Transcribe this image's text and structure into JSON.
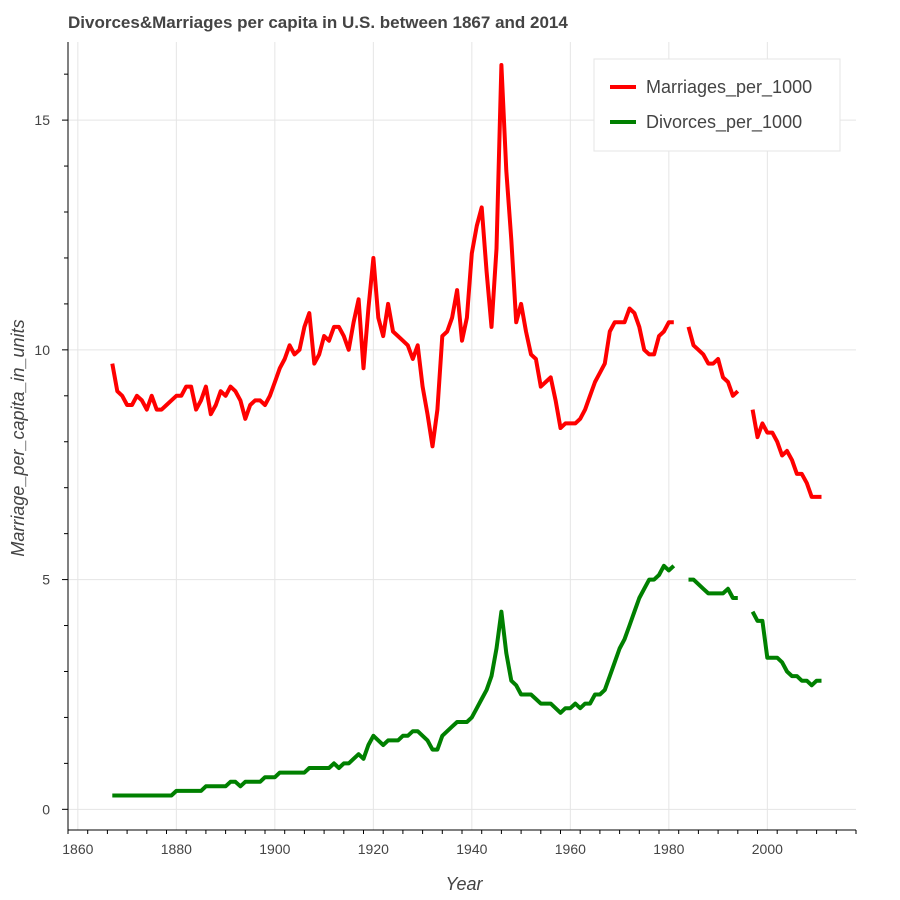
{
  "chart_data": {
    "type": "line",
    "title": "Divorces&Marriages per capita in U.S. between 1867 and 2014",
    "xlabel": "Year",
    "ylabel": "Marriage_per_capita_in_units",
    "xlim": [
      1858,
      2018
    ],
    "ylim": [
      -0.45,
      16.7
    ],
    "x_ticks": [
      1860,
      1880,
      1900,
      1920,
      1940,
      1960,
      1980,
      2000
    ],
    "y_ticks": [
      0,
      5,
      10,
      15
    ],
    "grid": true,
    "legend_position": "top-right",
    "series": [
      {
        "name": "Marriages_per_1000",
        "color": "#ff0000",
        "points": [
          [
            1867,
            9.7
          ],
          [
            1868,
            9.1
          ],
          [
            1869,
            9.0
          ],
          [
            1870,
            8.8
          ],
          [
            1871,
            8.8
          ],
          [
            1872,
            9.0
          ],
          [
            1873,
            8.9
          ],
          [
            1874,
            8.7
          ],
          [
            1875,
            9.0
          ],
          [
            1876,
            8.7
          ],
          [
            1877,
            8.7
          ],
          [
            1878,
            8.8
          ],
          [
            1879,
            8.9
          ],
          [
            1880,
            9.0
          ],
          [
            1881,
            9.0
          ],
          [
            1882,
            9.2
          ],
          [
            1883,
            9.2
          ],
          [
            1884,
            8.7
          ],
          [
            1885,
            8.9
          ],
          [
            1886,
            9.2
          ],
          [
            1887,
            8.6
          ],
          [
            1888,
            8.8
          ],
          [
            1889,
            9.1
          ],
          [
            1890,
            9.0
          ],
          [
            1891,
            9.2
          ],
          [
            1892,
            9.1
          ],
          [
            1893,
            8.9
          ],
          [
            1894,
            8.5
          ],
          [
            1895,
            8.8
          ],
          [
            1896,
            8.9
          ],
          [
            1897,
            8.9
          ],
          [
            1898,
            8.8
          ],
          [
            1899,
            9.0
          ],
          [
            1900,
            9.3
          ],
          [
            1901,
            9.6
          ],
          [
            1902,
            9.8
          ],
          [
            1903,
            10.1
          ],
          [
            1904,
            9.9
          ],
          [
            1905,
            10.0
          ],
          [
            1906,
            10.5
          ],
          [
            1907,
            10.8
          ],
          [
            1908,
            9.7
          ],
          [
            1909,
            9.9
          ],
          [
            1910,
            10.3
          ],
          [
            1911,
            10.2
          ],
          [
            1912,
            10.5
          ],
          [
            1913,
            10.5
          ],
          [
            1914,
            10.3
          ],
          [
            1915,
            10.0
          ],
          [
            1916,
            10.6
          ],
          [
            1917,
            11.1
          ],
          [
            1918,
            9.6
          ],
          [
            1919,
            10.9
          ],
          [
            1920,
            12.0
          ],
          [
            1921,
            10.7
          ],
          [
            1922,
            10.3
          ],
          [
            1923,
            11.0
          ],
          [
            1924,
            10.4
          ],
          [
            1925,
            10.3
          ],
          [
            1926,
            10.2
          ],
          [
            1927,
            10.1
          ],
          [
            1928,
            9.8
          ],
          [
            1929,
            10.1
          ],
          [
            1930,
            9.2
          ],
          [
            1931,
            8.6
          ],
          [
            1932,
            7.9
          ],
          [
            1933,
            8.7
          ],
          [
            1934,
            10.3
          ],
          [
            1935,
            10.4
          ],
          [
            1936,
            10.7
          ],
          [
            1937,
            11.3
          ],
          [
            1938,
            10.2
          ],
          [
            1939,
            10.7
          ],
          [
            1940,
            12.1
          ],
          [
            1941,
            12.7
          ],
          [
            1942,
            13.1
          ],
          [
            1943,
            11.7
          ],
          [
            1944,
            10.5
          ],
          [
            1945,
            12.2
          ],
          [
            1946,
            16.2
          ],
          [
            1947,
            13.9
          ],
          [
            1948,
            12.4
          ],
          [
            1949,
            10.6
          ],
          [
            1950,
            11.0
          ],
          [
            1951,
            10.4
          ],
          [
            1952,
            9.9
          ],
          [
            1953,
            9.8
          ],
          [
            1954,
            9.2
          ],
          [
            1955,
            9.3
          ],
          [
            1956,
            9.4
          ],
          [
            1957,
            8.9
          ],
          [
            1958,
            8.3
          ],
          [
            1959,
            8.4
          ],
          [
            1960,
            8.4
          ],
          [
            1961,
            8.4
          ],
          [
            1962,
            8.5
          ],
          [
            1963,
            8.7
          ],
          [
            1964,
            9.0
          ],
          [
            1965,
            9.3
          ],
          [
            1966,
            9.5
          ],
          [
            1967,
            9.7
          ],
          [
            1968,
            10.4
          ],
          [
            1969,
            10.6
          ],
          [
            1970,
            10.6
          ],
          [
            1971,
            10.6
          ],
          [
            1972,
            10.9
          ],
          [
            1973,
            10.8
          ],
          [
            1974,
            10.5
          ],
          [
            1975,
            10.0
          ],
          [
            1976,
            9.9
          ],
          [
            1977,
            9.9
          ],
          [
            1978,
            10.3
          ],
          [
            1979,
            10.4
          ],
          [
            1980,
            10.6
          ],
          [
            1981,
            10.6
          ],
          null,
          [
            1984,
            10.5
          ],
          [
            1985,
            10.1
          ],
          [
            1986,
            10.0
          ],
          [
            1987,
            9.9
          ],
          [
            1988,
            9.7
          ],
          [
            1989,
            9.7
          ],
          [
            1990,
            9.8
          ],
          [
            1991,
            9.4
          ],
          [
            1992,
            9.3
          ],
          [
            1993,
            9.0
          ],
          [
            1994,
            9.1
          ],
          null,
          [
            1997,
            8.7
          ],
          [
            1998,
            8.1
          ],
          [
            1999,
            8.4
          ],
          [
            2000,
            8.2
          ],
          [
            2001,
            8.2
          ],
          [
            2002,
            8.0
          ],
          [
            2003,
            7.7
          ],
          [
            2004,
            7.8
          ],
          [
            2005,
            7.6
          ],
          [
            2006,
            7.3
          ],
          [
            2007,
            7.3
          ],
          [
            2008,
            7.1
          ],
          [
            2009,
            6.8
          ],
          [
            2010,
            6.8
          ],
          [
            2011,
            6.8
          ]
        ]
      },
      {
        "name": "Divorces_per_1000",
        "color": "#008000",
        "points": [
          [
            1867,
            0.3
          ],
          [
            1870,
            0.3
          ],
          [
            1875,
            0.3
          ],
          [
            1879,
            0.3
          ],
          [
            1880,
            0.4
          ],
          [
            1885,
            0.4
          ],
          [
            1886,
            0.5
          ],
          [
            1890,
            0.5
          ],
          [
            1891,
            0.6
          ],
          [
            1892,
            0.6
          ],
          [
            1893,
            0.5
          ],
          [
            1894,
            0.6
          ],
          [
            1897,
            0.6
          ],
          [
            1898,
            0.7
          ],
          [
            1900,
            0.7
          ],
          [
            1901,
            0.8
          ],
          [
            1906,
            0.8
          ],
          [
            1907,
            0.9
          ],
          [
            1911,
            0.9
          ],
          [
            1912,
            1.0
          ],
          [
            1913,
            0.9
          ],
          [
            1914,
            1.0
          ],
          [
            1915,
            1.0
          ],
          [
            1916,
            1.1
          ],
          [
            1917,
            1.2
          ],
          [
            1918,
            1.1
          ],
          [
            1919,
            1.4
          ],
          [
            1920,
            1.6
          ],
          [
            1921,
            1.5
          ],
          [
            1922,
            1.4
          ],
          [
            1923,
            1.5
          ],
          [
            1924,
            1.5
          ],
          [
            1925,
            1.5
          ],
          [
            1926,
            1.6
          ],
          [
            1927,
            1.6
          ],
          [
            1928,
            1.7
          ],
          [
            1929,
            1.7
          ],
          [
            1930,
            1.6
          ],
          [
            1931,
            1.5
          ],
          [
            1932,
            1.3
          ],
          [
            1933,
            1.3
          ],
          [
            1934,
            1.6
          ],
          [
            1935,
            1.7
          ],
          [
            1936,
            1.8
          ],
          [
            1937,
            1.9
          ],
          [
            1938,
            1.9
          ],
          [
            1939,
            1.9
          ],
          [
            1940,
            2.0
          ],
          [
            1941,
            2.2
          ],
          [
            1942,
            2.4
          ],
          [
            1943,
            2.6
          ],
          [
            1944,
            2.9
          ],
          [
            1945,
            3.5
          ],
          [
            1946,
            4.3
          ],
          [
            1947,
            3.4
          ],
          [
            1948,
            2.8
          ],
          [
            1949,
            2.7
          ],
          [
            1950,
            2.5
          ],
          [
            1951,
            2.5
          ],
          [
            1952,
            2.5
          ],
          [
            1953,
            2.4
          ],
          [
            1954,
            2.3
          ],
          [
            1955,
            2.3
          ],
          [
            1956,
            2.3
          ],
          [
            1957,
            2.2
          ],
          [
            1958,
            2.1
          ],
          [
            1959,
            2.2
          ],
          [
            1960,
            2.2
          ],
          [
            1961,
            2.3
          ],
          [
            1962,
            2.2
          ],
          [
            1963,
            2.3
          ],
          [
            1964,
            2.3
          ],
          [
            1965,
            2.5
          ],
          [
            1966,
            2.5
          ],
          [
            1967,
            2.6
          ],
          [
            1968,
            2.9
          ],
          [
            1969,
            3.2
          ],
          [
            1970,
            3.5
          ],
          [
            1971,
            3.7
          ],
          [
            1972,
            4.0
          ],
          [
            1973,
            4.3
          ],
          [
            1974,
            4.6
          ],
          [
            1975,
            4.8
          ],
          [
            1976,
            5.0
          ],
          [
            1977,
            5.0
          ],
          [
            1978,
            5.1
          ],
          [
            1979,
            5.3
          ],
          [
            1980,
            5.2
          ],
          [
            1981,
            5.3
          ],
          null,
          [
            1984,
            5.0
          ],
          [
            1985,
            5.0
          ],
          [
            1986,
            4.9
          ],
          [
            1987,
            4.8
          ],
          [
            1988,
            4.7
          ],
          [
            1989,
            4.7
          ],
          [
            1990,
            4.7
          ],
          [
            1991,
            4.7
          ],
          [
            1992,
            4.8
          ],
          [
            1993,
            4.6
          ],
          [
            1994,
            4.6
          ],
          null,
          [
            1997,
            4.3
          ],
          [
            1998,
            4.1
          ],
          [
            1999,
            4.1
          ],
          [
            2000,
            3.3
          ],
          [
            2001,
            3.3
          ],
          [
            2002,
            3.3
          ],
          [
            2003,
            3.2
          ],
          [
            2004,
            3.0
          ],
          [
            2005,
            2.9
          ],
          [
            2006,
            2.9
          ],
          [
            2007,
            2.8
          ],
          [
            2008,
            2.8
          ],
          [
            2009,
            2.7
          ],
          [
            2010,
            2.8
          ],
          [
            2011,
            2.8
          ]
        ]
      }
    ]
  }
}
